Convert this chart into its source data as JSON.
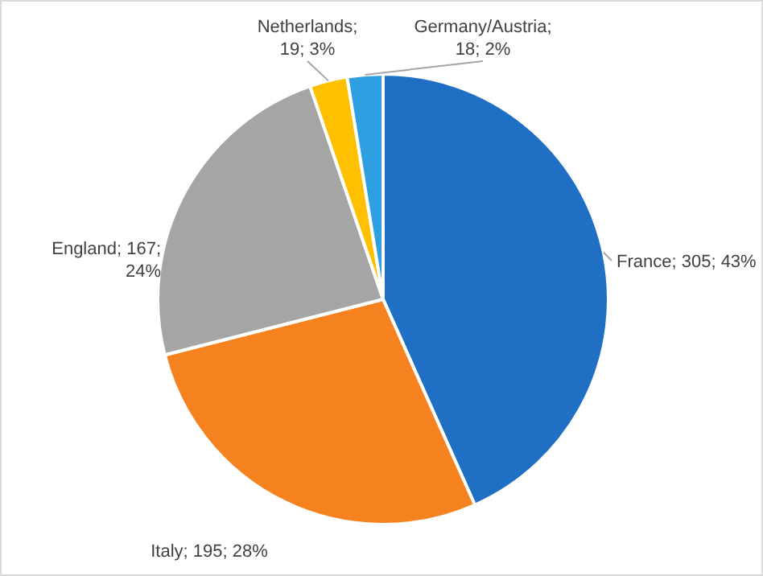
{
  "chart_data": {
    "type": "pie",
    "categories": [
      "France",
      "Italy",
      "England",
      "Netherlands",
      "Germany/Austria"
    ],
    "values": [
      305,
      195,
      167,
      19,
      18
    ],
    "colors": [
      "#1f6fc5",
      "#f5821f",
      "#a5a5a5",
      "#ffc000",
      "#2e9fe0"
    ],
    "value_labels": [
      "; 305; 43%",
      "; 195; 28%",
      "; 167; 24%",
      "; 19; 3%",
      "; 18; 2%"
    ]
  }
}
